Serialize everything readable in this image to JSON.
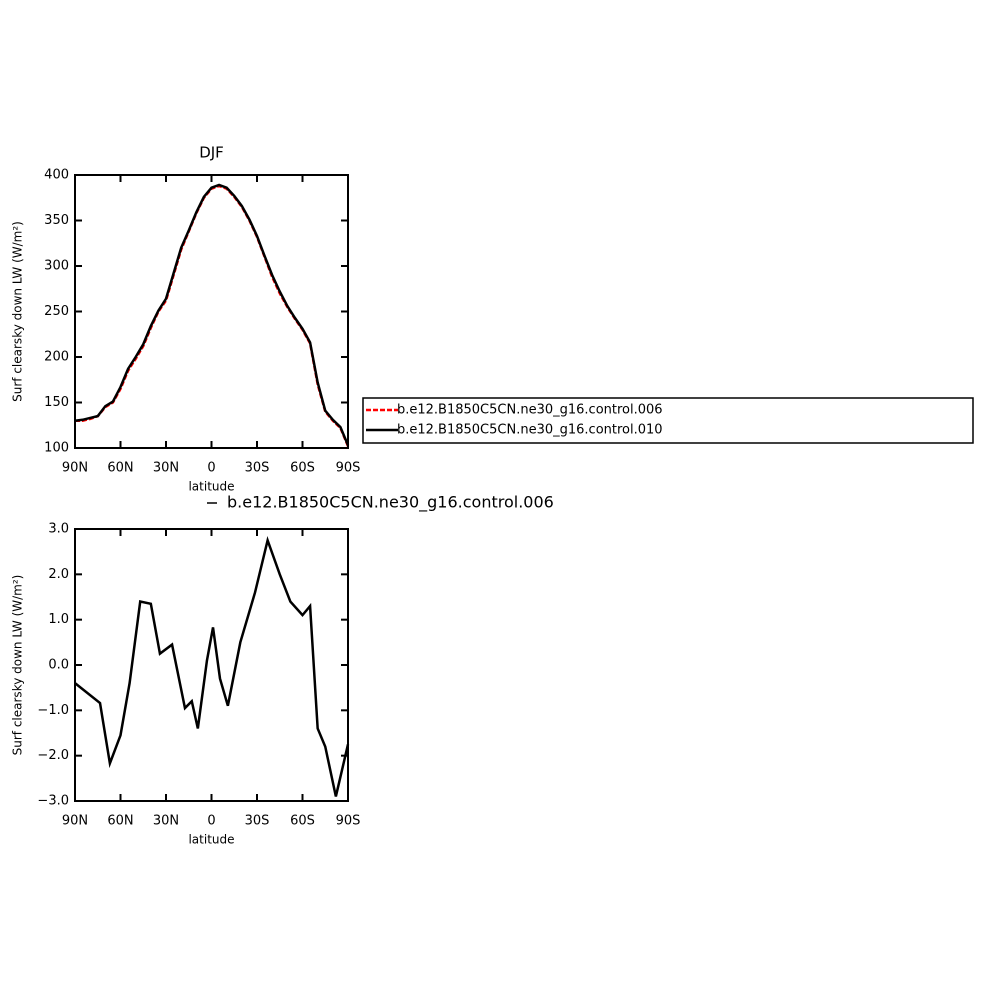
{
  "chart_data": [
    {
      "type": "line",
      "title": "DJF",
      "xlabel": "latitude",
      "ylabel": "Surf clearsky down LW (W/m²)",
      "x": [
        90,
        85,
        80,
        75,
        70,
        65,
        60,
        55,
        50,
        45,
        40,
        35,
        30,
        25,
        20,
        15,
        10,
        5,
        0,
        -5,
        -10,
        -15,
        -20,
        -25,
        -30,
        -35,
        -40,
        -45,
        -50,
        -55,
        -60,
        -65,
        -70,
        -75,
        -80,
        -85,
        -90
      ],
      "series": [
        {
          "name": "b.e12.B1850C5CN.ne30_g16.control.006",
          "color": "#ff0000",
          "linestyle": "dashed",
          "values": [
            130,
            130,
            132,
            135,
            145,
            150,
            165,
            185,
            198,
            212,
            232,
            250,
            262,
            290,
            318,
            338,
            358,
            375,
            385,
            388,
            385,
            376,
            365,
            350,
            332,
            310,
            288,
            270,
            255,
            242,
            230,
            215,
            170,
            140,
            130,
            122,
            102
          ]
        },
        {
          "name": "b.e12.B1850C5CN.ne30_g16.control.010",
          "color": "#000000",
          "linestyle": "solid",
          "values": [
            130,
            131,
            133,
            135,
            146,
            151,
            167,
            187,
            200,
            214,
            234,
            251,
            264,
            292,
            320,
            339,
            359,
            376,
            386,
            389,
            386,
            377,
            366,
            351,
            333,
            311,
            290,
            272,
            256,
            243,
            231,
            216,
            172,
            141,
            131,
            123,
            103
          ]
        }
      ],
      "xlim": [
        90,
        -90
      ],
      "ylim": [
        100,
        400
      ],
      "xticks": [
        {
          "value": 90,
          "label": "90N"
        },
        {
          "value": 60,
          "label": "60N"
        },
        {
          "value": 30,
          "label": "30N"
        },
        0,
        {
          "value": -30,
          "label": "30S"
        },
        {
          "value": -60,
          "label": "60S"
        },
        {
          "value": -90,
          "label": "90S"
        }
      ],
      "yticks": [
        100,
        150,
        200,
        250,
        300,
        350,
        400
      ]
    },
    {
      "type": "line",
      "xlabel": "latitude",
      "ylabel": "Surf clearsky down LW (W/m²)",
      "x": [
        90,
        73.5,
        67,
        60,
        54,
        47,
        40,
        34,
        26,
        17.5,
        13,
        9,
        3,
        -1,
        -5.6,
        -10.8,
        -19,
        -28.7,
        -37,
        -45,
        -52,
        -60,
        -65,
        -70,
        -75,
        -82,
        -90
      ],
      "series": [
        {
          "name": "b.e12.B1850C5CN.ne30_g16.control.006",
          "color": "#000000",
          "linestyle": "solid",
          "values": [
            -0.4,
            -0.84,
            -2.17,
            -1.55,
            -0.4,
            1.4,
            1.35,
            0.25,
            0.45,
            -0.95,
            -0.8,
            -1.4,
            0.1,
            0.83,
            -0.3,
            -0.9,
            0.5,
            1.6,
            2.75,
            2.0,
            1.4,
            1.1,
            1.3,
            -1.4,
            -1.8,
            -2.9,
            -1.75
          ]
        }
      ],
      "xlim": [
        90,
        -90
      ],
      "ylim": [
        -3,
        3
      ],
      "xticks": [
        {
          "value": 90,
          "label": "90N"
        },
        {
          "value": 60,
          "label": "60N"
        },
        {
          "value": 30,
          "label": "30N"
        },
        0,
        {
          "value": -30,
          "label": "30S"
        },
        {
          "value": -60,
          "label": "60S"
        },
        {
          "value": -90,
          "label": "90S"
        }
      ],
      "yticks": [
        {
          "value": -3,
          "label": "−3.0"
        },
        {
          "value": -2,
          "label": "−2.0"
        },
        {
          "value": -1,
          "label": "−1.0"
        },
        {
          "value": 0,
          "label": "0.0"
        },
        {
          "value": 1,
          "label": "1.0"
        },
        {
          "value": 2,
          "label": "2.0"
        },
        {
          "value": 3,
          "label": "3.0"
        }
      ]
    }
  ]
}
